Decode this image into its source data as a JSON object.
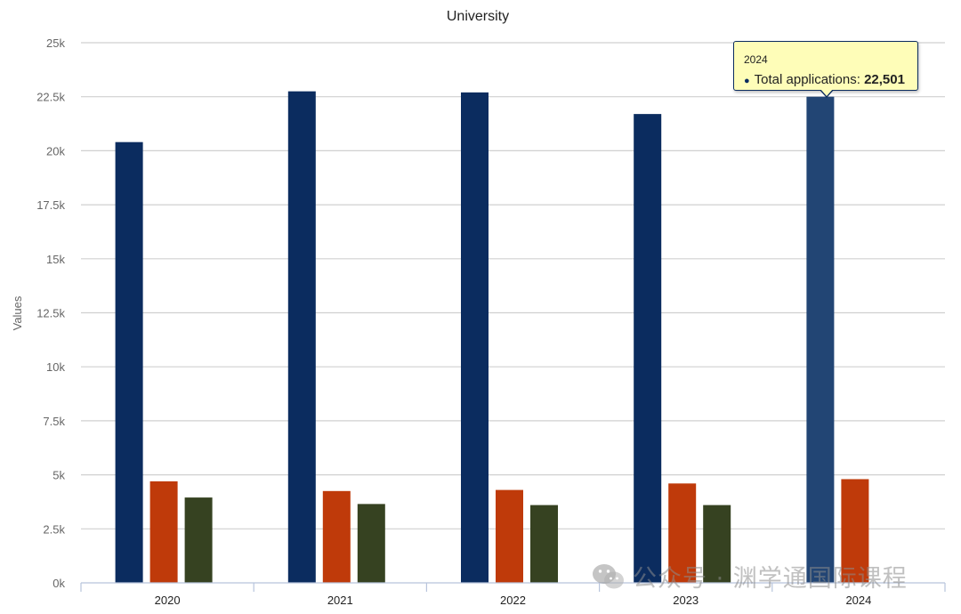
{
  "chart_data": {
    "type": "bar",
    "title": "University",
    "xlabel": "",
    "ylabel": "Values",
    "ylim": [
      0,
      25000
    ],
    "yticks": [
      0,
      2500,
      5000,
      7500,
      10000,
      12500,
      15000,
      17500,
      20000,
      22500,
      25000
    ],
    "ytick_labels": [
      "0k",
      "2.5k",
      "5k",
      "7.5k",
      "10k",
      "12.5k",
      "15k",
      "17.5k",
      "20k",
      "22.5k",
      "25k"
    ],
    "categories": [
      "2020",
      "2021",
      "2022",
      "2023",
      "2024"
    ],
    "grid": true,
    "series": [
      {
        "name": "Total applications",
        "color": "#0b2c5f",
        "values": [
          20400,
          22750,
          22700,
          21700,
          22501
        ]
      },
      {
        "color": "#bf3a0a",
        "values": [
          4700,
          4250,
          4300,
          4600,
          4800
        ]
      },
      {
        "color": "#364221",
        "values": [
          3950,
          3650,
          3600,
          3600,
          null
        ]
      }
    ],
    "highlight_color": "#224574",
    "tooltip": {
      "category": "2024",
      "label": "Total applications:",
      "value": "22,501"
    }
  },
  "watermark": {
    "text": "公众号 · 渊学通国际课程",
    "icon": "wechat-icon"
  }
}
